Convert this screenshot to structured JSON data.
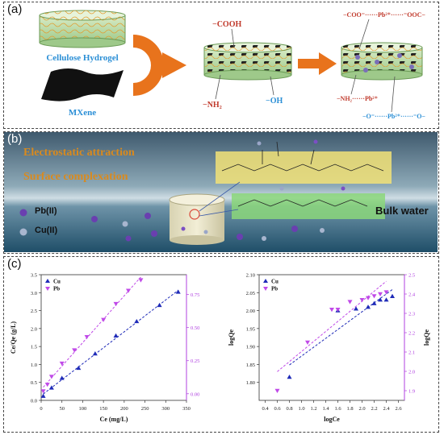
{
  "panel_a": {
    "label": "(a)",
    "hydrogel_label": "Cellulose Hydrogel",
    "mxene_label": "MXene",
    "cooh": "−COOH",
    "nh2": "−NH₂",
    "oh": "−OH",
    "complex_top": "−COO⁻······Pb²⁺······⁻OOC−",
    "complex_nh2": "−NH₂······Pb²⁺",
    "complex_o": "−O⁻······Pb²⁺······⁻O−",
    "colors": {
      "arrow": "#e8731c",
      "label_blue": "#2b8fd6",
      "label_red": "#c0392b"
    }
  },
  "panel_b": {
    "label": "(b)",
    "line1": "Electrostatic attraction",
    "line2": "Surface complexation",
    "pb": "Pb(II)",
    "cu": "Cu(II)",
    "bulk": "Bulk water",
    "colors": {
      "text_orange": "#d98a1e",
      "pb_dot": "#6a3fb0",
      "cu_dot": "#7f93b5"
    }
  },
  "panel_c": {
    "label": "(c)"
  },
  "chart_data": [
    {
      "type": "scatter",
      "xlabel": "Ce (mg/L)",
      "ylabel": "Ce/Qe (g/L)",
      "y2label": "",
      "xlim": [
        0,
        350
      ],
      "ylim": [
        0,
        3.5
      ],
      "y2lim": [
        -0.05,
        0.9
      ],
      "xticks": [
        "0",
        "50",
        "100",
        "150",
        "200",
        "250",
        "300",
        "350"
      ],
      "yticks": [
        "0.0",
        "0.5",
        "1.0",
        "1.5",
        "2.0",
        "2.5",
        "3.0",
        "3.5"
      ],
      "y2ticks": [
        "0.00",
        "0.25",
        "0.50",
        "0.75"
      ],
      "series": [
        {
          "name": "Cu",
          "axis": "left",
          "color": "#1f2bb8",
          "marker": "triangle-up",
          "x": [
            5,
            25,
            50,
            90,
            130,
            180,
            230,
            285,
            330
          ],
          "y": [
            0.12,
            0.35,
            0.62,
            0.9,
            1.3,
            1.8,
            2.2,
            2.65,
            3.02
          ]
        },
        {
          "name": "Pb",
          "axis": "right",
          "color": "#c04ae8",
          "marker": "triangle-down",
          "x": [
            5,
            15,
            25,
            50,
            80,
            110,
            150,
            180,
            210,
            240
          ],
          "y": [
            0.02,
            0.07,
            0.13,
            0.23,
            0.33,
            0.43,
            0.56,
            0.68,
            0.78,
            0.86
          ]
        }
      ]
    },
    {
      "type": "scatter",
      "xlabel": "logCe",
      "ylabel": "logQe",
      "y2label": "logQe",
      "xlim": [
        0.3,
        2.7
      ],
      "ylim": [
        1.75,
        2.1
      ],
      "y2lim": [
        1.85,
        2.5
      ],
      "xticks": [
        "0.4",
        "0.6",
        "0.8",
        "1.0",
        "1.2",
        "1.4",
        "1.6",
        "1.8",
        "2.0",
        "2.2",
        "2.4",
        "2.6"
      ],
      "yticks": [
        "1.80",
        "1.85",
        "1.90",
        "1.95",
        "2.00",
        "2.05",
        "2.10"
      ],
      "y2ticks": [
        "1.9",
        "2.0",
        "2.1",
        "2.2",
        "2.3",
        "2.4",
        "2.5"
      ],
      "series": [
        {
          "name": "Cu",
          "axis": "left",
          "color": "#1f2bb8",
          "marker": "triangle-up",
          "x": [
            0.8,
            1.6,
            1.9,
            2.1,
            2.2,
            2.3,
            2.4,
            2.5
          ],
          "y": [
            1.815,
            2.0,
            2.005,
            2.01,
            2.02,
            2.03,
            2.03,
            2.04
          ]
        },
        {
          "name": "Pb",
          "axis": "right",
          "color": "#c04ae8",
          "marker": "triangle-down",
          "x": [
            0.6,
            1.1,
            1.5,
            1.6,
            1.8,
            2.0,
            2.1,
            2.2,
            2.3,
            2.4
          ],
          "y": [
            1.9,
            2.15,
            2.32,
            2.32,
            2.36,
            2.37,
            2.38,
            2.39,
            2.4,
            2.41
          ]
        }
      ]
    }
  ]
}
